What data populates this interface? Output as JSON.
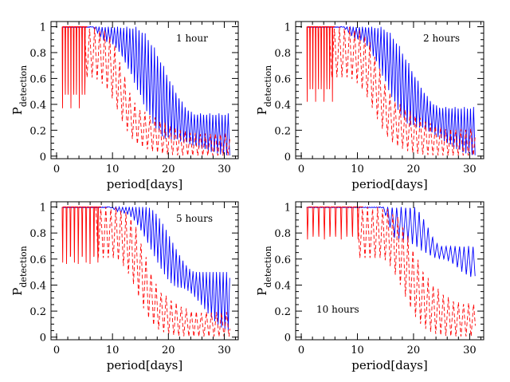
{
  "chart_data": [
    {
      "type": "line",
      "annotation": "1 hour",
      "xlabel": "period[days]",
      "ylabel_main": "P",
      "ylabel_sub": "detection",
      "xlim": [
        -1,
        32.5
      ],
      "ylim": [
        -0.02,
        1.04
      ],
      "xticks": [
        0,
        10,
        20,
        30
      ],
      "yticks": [
        0,
        0.2,
        0.4,
        0.6,
        0.8,
        1
      ],
      "ytick_labels": [
        "0",
        "0.2",
        "0.4",
        "0.6",
        "0.8",
        "1"
      ],
      "series": [
        {
          "color": "#0000ff",
          "style": "solid",
          "x_start": 1,
          "x_end": 31,
          "plateau_end": 9,
          "min_at_start": 0.88,
          "min_floor": 0.0,
          "min_mid": [
            20,
            0.12
          ],
          "max_drop_start": 14,
          "max_at_end": 0.33,
          "osc_period": 0.55
        },
        {
          "color": "#ff0000",
          "style": "solid",
          "x_start": 1,
          "x_end": 5.5,
          "min_level": 0.37,
          "osc_period": 0.5
        },
        {
          "color": "#ff0000",
          "style": "dashed",
          "x_start": 5,
          "x_end": 31,
          "max_levels": [
            1.0,
            0.5,
            0.37
          ],
          "decay_center": 9,
          "decay_end": 26
        }
      ]
    },
    {
      "type": "line",
      "annotation": "2 hours",
      "xlabel": "period[days]",
      "ylabel_main": "P",
      "ylabel_sub": "detection",
      "xlim": [
        -1,
        32.5
      ],
      "ylim": [
        -0.02,
        1.04
      ],
      "xticks": [
        0,
        10,
        20,
        30
      ],
      "yticks": [
        0,
        0.2,
        0.4,
        0.6,
        0.8,
        1
      ],
      "ytick_labels": [
        "0",
        "0.2",
        "0.4",
        "0.6",
        "0.8",
        "1"
      ],
      "series": [
        {
          "color": "#0000ff",
          "style": "solid",
          "x_start": 1,
          "x_end": 31,
          "plateau_end": 10,
          "min_at_start": 0.9,
          "min_floor": 0.0,
          "min_mid": [
            20,
            0.22
          ],
          "max_drop_start": 14,
          "max_at_end": 0.38,
          "osc_period": 0.55
        },
        {
          "color": "#ff0000",
          "style": "solid",
          "x_start": 1,
          "x_end": 6,
          "min_level": 0.42,
          "osc_period": 0.5
        },
        {
          "color": "#ff0000",
          "style": "dashed",
          "x_start": 5,
          "x_end": 31,
          "max_levels": [
            1.0,
            0.6,
            0.42
          ],
          "decay_center": 11,
          "decay_end": 27
        }
      ]
    },
    {
      "type": "line",
      "annotation": "5 hours",
      "xlabel": "period[days]",
      "ylabel_main": "P",
      "ylabel_sub": "detection",
      "xlim": [
        -1,
        32.5
      ],
      "ylim": [
        -0.02,
        1.04
      ],
      "xticks": [
        0,
        10,
        20,
        30
      ],
      "yticks": [
        0,
        0.2,
        0.4,
        0.6,
        0.8,
        1
      ],
      "ytick_labels": [
        "0",
        "0.2",
        "0.4",
        "0.6",
        "0.8",
        "1"
      ],
      "series": [
        {
          "color": "#0000ff",
          "style": "solid",
          "x_start": 1,
          "x_end": 31,
          "plateau_end": 12,
          "min_at_start": 0.95,
          "min_floor": 0.05,
          "min_mid": [
            22,
            0.38
          ],
          "max_drop_start": 16,
          "max_at_end": 0.5,
          "osc_period": 0.6
        },
        {
          "color": "#ff0000",
          "style": "solid",
          "x_start": 1,
          "x_end": 8,
          "min_level": 0.54,
          "osc_period": 0.7
        },
        {
          "color": "#ff0000",
          "style": "dashed",
          "x_start": 7,
          "x_end": 31,
          "max_levels": [
            1.0,
            0.55,
            0.54
          ],
          "decay_center": 13,
          "decay_end": 26
        }
      ]
    },
    {
      "type": "line",
      "annotation": "10 hours",
      "xlabel": "period[days]",
      "ylabel_main": "P",
      "ylabel_sub": "detection",
      "xlim": [
        -1,
        32.5
      ],
      "ylim": [
        -0.02,
        1.04
      ],
      "xticks": [
        0,
        10,
        20,
        30
      ],
      "yticks": [
        0,
        0.2,
        0.4,
        0.6,
        0.8,
        1
      ],
      "ytick_labels": [
        "0",
        "0.2",
        "0.4",
        "0.6",
        "0.8",
        "1"
      ],
      "series": [
        {
          "color": "#0000ff",
          "style": "solid",
          "x_start": 1,
          "x_end": 31,
          "plateau_end": 17,
          "min_at_start": 0.75,
          "min_floor": 0.45,
          "min_mid": [
            25,
            0.6
          ],
          "max_drop_start": 20,
          "max_at_end": 0.7,
          "osc_period": 0.8
        },
        {
          "color": "#ff0000",
          "style": "solid",
          "x_start": 1,
          "x_end": 11,
          "min_level": 0.75,
          "osc_period": 1.0
        },
        {
          "color": "#ff0000",
          "style": "dashed",
          "x_start": 10,
          "x_end": 31,
          "max_levels": [
            1.0,
            0.75,
            0.7
          ],
          "decay_center": 17,
          "decay_end": 29
        }
      ]
    }
  ]
}
